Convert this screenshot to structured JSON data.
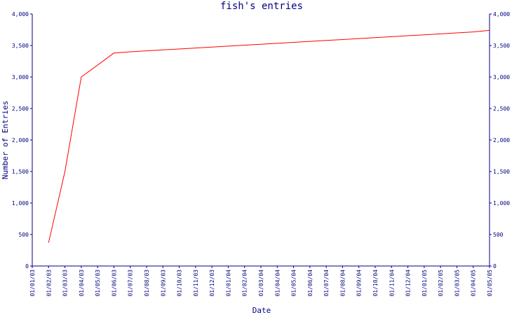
{
  "chart_data": {
    "type": "line",
    "title": "fish's entries",
    "xlabel": "Date",
    "ylabel": "Number of Entries",
    "ylim": [
      0,
      4000
    ],
    "y_ticks": [
      0,
      500,
      1000,
      1500,
      2000,
      2500,
      3000,
      3500,
      4000
    ],
    "y_tick_labels": [
      "0",
      "500",
      "1,000",
      "1,500",
      "2,000",
      "2,500",
      "3,000",
      "3,500",
      "4,000"
    ],
    "x_tick_labels": [
      "01/01/03",
      "01/02/03",
      "01/03/03",
      "01/04/03",
      "01/05/03",
      "01/06/03",
      "01/07/03",
      "01/08/03",
      "01/09/03",
      "01/10/03",
      "01/11/03",
      "01/12/03",
      "01/01/04",
      "01/02/04",
      "01/03/04",
      "01/04/04",
      "01/05/04",
      "01/06/04",
      "01/07/04",
      "01/08/04",
      "01/09/04",
      "01/10/04",
      "01/11/04",
      "01/12/04",
      "01/01/05",
      "01/02/05",
      "01/03/05",
      "01/04/05",
      "01/05/05"
    ],
    "grid": false,
    "secondary_y_axis": true,
    "colors": {
      "axis": "#000080",
      "series": "#ff0000",
      "background": "#ffffff"
    },
    "series": [
      {
        "x": [
          "2003-02-01",
          "2003-03-01",
          "2003-04-01",
          "2003-06-01",
          "2003-07-01",
          "2003-08-01",
          "2003-09-01",
          "2003-10-01",
          "2003-11-01",
          "2003-12-01",
          "2004-01-01",
          "2004-02-01",
          "2004-03-01",
          "2004-04-01",
          "2004-05-01",
          "2004-06-01",
          "2004-07-01",
          "2004-08-01",
          "2004-09-01",
          "2004-10-01",
          "2004-11-01",
          "2004-12-01",
          "2005-01-01",
          "2005-02-01",
          "2005-03-01",
          "2005-04-01",
          "2005-05-01"
        ],
        "values": [
          370,
          1500,
          3000,
          3380,
          3400,
          3415,
          3430,
          3445,
          3460,
          3475,
          3490,
          3505,
          3520,
          3535,
          3550,
          3565,
          3580,
          3595,
          3610,
          3625,
          3640,
          3655,
          3670,
          3685,
          3700,
          3715,
          3740
        ]
      }
    ]
  }
}
